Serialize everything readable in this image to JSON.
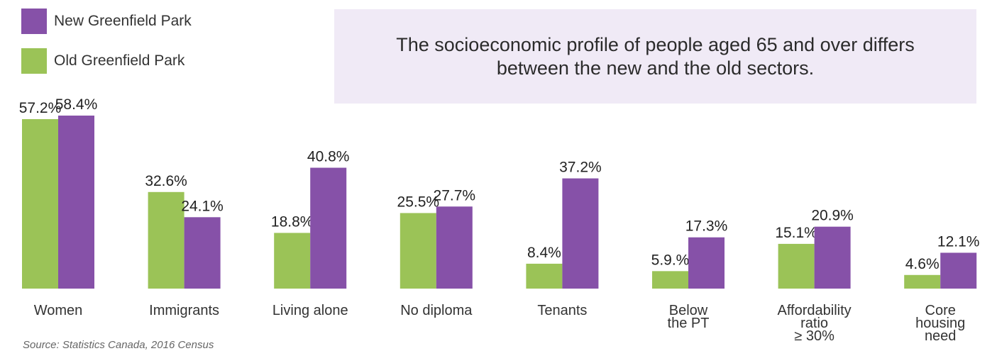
{
  "legend": {
    "items": [
      {
        "label": "New Greenfield Park",
        "color": "#8651a8"
      },
      {
        "label": "Old Greenfield Park",
        "color": "#9bc357"
      }
    ]
  },
  "title": "The socioeconomic profile of people aged 65 and over differs between the new and the old sectors.",
  "source": "Source: Statistics Canada, 2016 Census",
  "chart_data": {
    "type": "bar",
    "categories": [
      [
        "Women"
      ],
      [
        "Immigrants"
      ],
      [
        "Living alone"
      ],
      [
        "No diploma"
      ],
      [
        "Tenants"
      ],
      [
        "Below",
        "the PT"
      ],
      [
        "Affordability",
        "ratio",
        "≥ 30%"
      ],
      [
        "Core",
        "housing",
        "need"
      ]
    ],
    "series": [
      {
        "name": "Old Greenfield Park",
        "color": "#9bc357",
        "values": [
          57.2,
          32.6,
          18.8,
          25.5,
          8.4,
          5.9,
          15.1,
          4.6
        ],
        "labels": [
          "57.2%",
          "32.6%",
          "18.8%",
          "25.5%",
          "8.4%",
          "5.9.%",
          "15.1%",
          "4.6%"
        ]
      },
      {
        "name": "New Greenfield Park",
        "color": "#8651a8",
        "values": [
          58.4,
          24.1,
          40.8,
          27.7,
          37.2,
          17.3,
          20.9,
          12.1
        ],
        "labels": [
          "58.4%",
          "24.1%",
          "40.8%",
          "27.7%",
          "37.2%",
          "17.3%",
          "20.9%",
          "12.1%"
        ]
      }
    ],
    "ylim": [
      0,
      58.4
    ]
  }
}
